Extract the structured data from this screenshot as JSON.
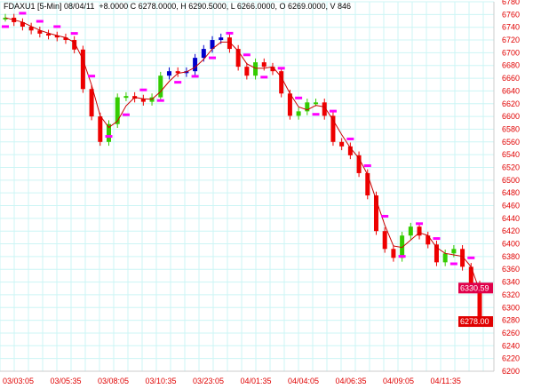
{
  "header": {
    "title": "FDAXU1 [5-Min] 08/04/11  +8.0000 C 6278.0000, H 6290.5000, L 6266.0000, O 6269.0000, V 846"
  },
  "chart_data": {
    "type": "candlestick",
    "symbol": "FDAXU1",
    "interval": "5-Min",
    "ylim": [
      6200,
      6780
    ],
    "yticks": [
      6200,
      6220,
      6240,
      6260,
      6280,
      6300,
      6320,
      6340,
      6360,
      6380,
      6400,
      6420,
      6440,
      6460,
      6480,
      6500,
      6520,
      6540,
      6560,
      6580,
      6600,
      6620,
      6640,
      6660,
      6680,
      6700,
      6720,
      6740,
      6760,
      6780
    ],
    "xticks": [
      "03/03:05",
      "03/05:35",
      "03/08:05",
      "03/10:35",
      "03/23:05",
      "04/01:35",
      "04/04:05",
      "04/06:35",
      "04/09:05",
      "04/11:35"
    ],
    "closes": [
      6755,
      6748,
      6741,
      6735,
      6730,
      6727,
      6724,
      6720,
      6705,
      6643,
      6600,
      6560,
      6588,
      6630,
      6632,
      6628,
      6623,
      6630,
      6664,
      6671,
      6668,
      6671,
      6692,
      6706,
      6720,
      6724,
      6706,
      6678,
      6664,
      6685,
      6678,
      6671,
      6636,
      6601,
      6608,
      6622,
      6622,
      6601,
      6560,
      6553,
      6539,
      6511,
      6476,
      6420,
      6392,
      6378,
      6413,
      6427,
      6413,
      6399,
      6371,
      6385,
      6392,
      6364,
      6336,
      6278
    ],
    "price_tags": [
      {
        "value": "6330.59",
        "color": "#e0004a"
      },
      {
        "value": "6278.00",
        "color": "#e00000"
      }
    ],
    "colors": {
      "up": "#33cc00",
      "down": "#ee0000",
      "trend": "#0000cc",
      "average": "#cc0000",
      "dots": "#ff00ff",
      "grid": "#ccf5f5",
      "axis_text": "#e00000"
    },
    "grid": true
  }
}
